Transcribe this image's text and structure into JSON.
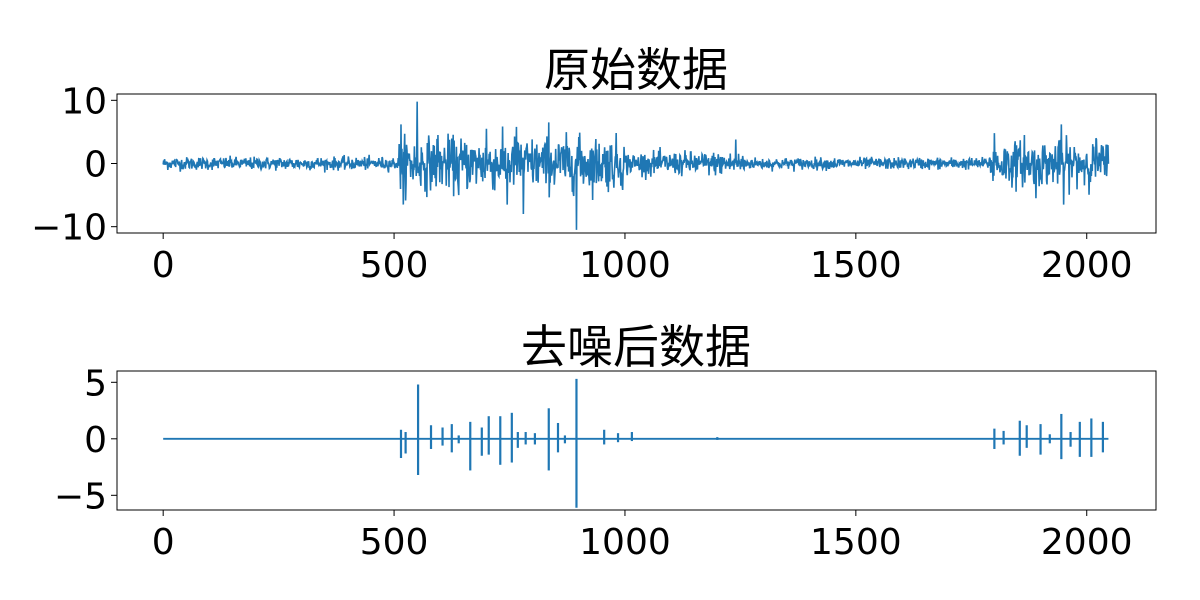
{
  "chart_data": [
    {
      "type": "line",
      "title": "原始数据",
      "xlabel": "",
      "ylabel": "",
      "xlim": [
        -100,
        2150
      ],
      "ylim": [
        -11,
        11
      ],
      "xticks": [
        0,
        500,
        1000,
        1500,
        2000
      ],
      "yticks": [
        -10,
        0,
        10
      ],
      "xtick_labels": [
        "0",
        "500",
        "1000",
        "1500",
        "2000"
      ],
      "ytick_labels": [
        "−10",
        "0",
        "10"
      ],
      "grid": false,
      "color": "#1f77b4",
      "n_points": 2048,
      "segments": [
        {
          "x_start": 0,
          "x_end": 510,
          "amplitude": 1.1
        },
        {
          "x_start": 510,
          "x_end": 1000,
          "amplitude": 4.5
        },
        {
          "x_start": 1000,
          "x_end": 1260,
          "amplitude": 2.0
        },
        {
          "x_start": 1260,
          "x_end": 1790,
          "amplitude": 1.0
        },
        {
          "x_start": 1790,
          "x_end": 2048,
          "amplitude": 3.8
        }
      ],
      "peaks": [
        {
          "x": 550,
          "y": 9.8
        },
        {
          "x": 515,
          "y": 6.2
        },
        {
          "x": 520,
          "y": -6.5
        },
        {
          "x": 595,
          "y": 4.5
        },
        {
          "x": 640,
          "y": -5.0
        },
        {
          "x": 700,
          "y": 5.5
        },
        {
          "x": 745,
          "y": -6.5
        },
        {
          "x": 765,
          "y": 5.8
        },
        {
          "x": 780,
          "y": -8.0
        },
        {
          "x": 835,
          "y": 6.5
        },
        {
          "x": 895,
          "y": -10.5
        },
        {
          "x": 900,
          "y": 4.2
        },
        {
          "x": 1240,
          "y": 3.8
        },
        {
          "x": 1800,
          "y": 4.8
        },
        {
          "x": 1865,
          "y": 4.5
        },
        {
          "x": 1890,
          "y": -5.5
        },
        {
          "x": 1945,
          "y": 6.2
        },
        {
          "x": 1950,
          "y": -6.5
        },
        {
          "x": 2020,
          "y": 4.0
        }
      ]
    },
    {
      "type": "line",
      "title": "去噪后数据",
      "xlabel": "",
      "ylabel": "",
      "xlim": [
        -100,
        2150
      ],
      "ylim": [
        -6.3,
        6.0
      ],
      "xticks": [
        0,
        500,
        1000,
        1500,
        2000
      ],
      "yticks": [
        -5,
        0,
        5
      ],
      "xtick_labels": [
        "0",
        "500",
        "1000",
        "1500",
        "2000"
      ],
      "ytick_labels": [
        "−5",
        "0",
        "5"
      ],
      "grid": false,
      "color": "#1f77b4",
      "n_points": 2048,
      "spikes": [
        {
          "x": 515,
          "up": 0.8,
          "down": -1.7
        },
        {
          "x": 525,
          "up": 0.6,
          "down": -1.3
        },
        {
          "x": 552,
          "up": 4.8,
          "down": -3.2
        },
        {
          "x": 580,
          "up": 1.2,
          "down": -0.9
        },
        {
          "x": 605,
          "up": 1.0,
          "down": -0.6
        },
        {
          "x": 625,
          "up": 1.3,
          "down": -1.2
        },
        {
          "x": 640,
          "up": 0.3,
          "down": -0.4
        },
        {
          "x": 665,
          "up": 1.5,
          "down": -2.8
        },
        {
          "x": 690,
          "up": 1.0,
          "down": -1.5
        },
        {
          "x": 705,
          "up": 2.0,
          "down": -1.4
        },
        {
          "x": 730,
          "up": 2.0,
          "down": -2.3
        },
        {
          "x": 755,
          "up": 2.3,
          "down": -2.1
        },
        {
          "x": 768,
          "up": 0.6,
          "down": -0.8
        },
        {
          "x": 785,
          "up": 0.6,
          "down": -0.5
        },
        {
          "x": 805,
          "up": 0.5,
          "down": -0.5
        },
        {
          "x": 835,
          "up": 2.7,
          "down": -2.8
        },
        {
          "x": 855,
          "up": 1.4,
          "down": -1.2
        },
        {
          "x": 870,
          "up": 0.3,
          "down": -0.4
        },
        {
          "x": 895,
          "up": 5.3,
          "down": -6.1
        },
        {
          "x": 955,
          "up": 0.8,
          "down": -0.5
        },
        {
          "x": 985,
          "up": 0.5,
          "down": -0.3
        },
        {
          "x": 1015,
          "up": 0.6,
          "down": -0.2
        },
        {
          "x": 1200,
          "up": 0.15,
          "down": -0.1
        },
        {
          "x": 1800,
          "up": 0.9,
          "down": -0.9
        },
        {
          "x": 1820,
          "up": 0.7,
          "down": -0.5
        },
        {
          "x": 1855,
          "up": 1.6,
          "down": -1.5
        },
        {
          "x": 1870,
          "up": 1.2,
          "down": -0.8
        },
        {
          "x": 1900,
          "up": 1.3,
          "down": -1.4
        },
        {
          "x": 1920,
          "up": 0.4,
          "down": -0.4
        },
        {
          "x": 1945,
          "up": 2.2,
          "down": -1.8
        },
        {
          "x": 1965,
          "up": 0.6,
          "down": -0.7
        },
        {
          "x": 1985,
          "up": 1.5,
          "down": -1.6
        },
        {
          "x": 2010,
          "up": 1.8,
          "down": -1.6
        },
        {
          "x": 2035,
          "up": 1.5,
          "down": -1.2
        }
      ]
    }
  ]
}
